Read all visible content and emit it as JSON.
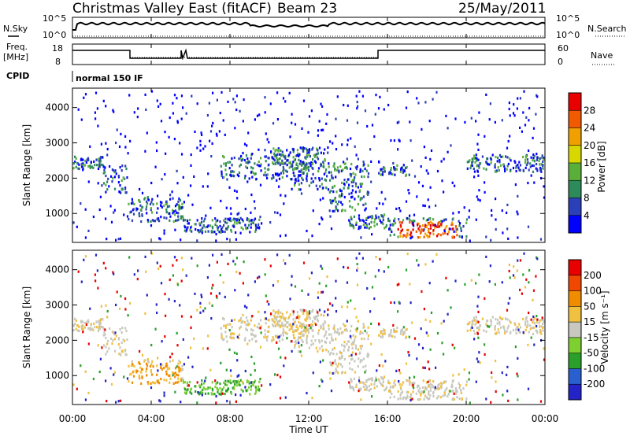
{
  "header": {
    "station": "Christmas Valley East (fitACF)",
    "beam": "Beam 23",
    "date": "25/May/2011"
  },
  "status_panels": {
    "nsky_label": "N.Sky",
    "nsky_ticks": [
      "10^5",
      "10^0"
    ],
    "nsearch_label": "N.Search",
    "nsearch_ticks": [
      "10^5",
      "10^0"
    ],
    "freq_label_1": "Freq.",
    "freq_label_2": "[MHz]",
    "freq_ticks": [
      "18",
      "8"
    ],
    "nave_label": "Nave",
    "nave_ticks": [
      "60",
      "0"
    ],
    "cpid_label": "CPID",
    "cpid_value": "normal 150 IF"
  },
  "chart_data": [
    {
      "type": "heatmap",
      "panel": "power",
      "ylabel": "Slant Range [km]",
      "yticks": [
        "4000",
        "3000",
        "2000",
        "1000"
      ],
      "ylim": [
        180,
        4550
      ],
      "colorbar_label": "Power [dB]",
      "colorbar_ticks": [
        "28",
        "24",
        "20",
        "16",
        "12",
        "8",
        "4"
      ],
      "colors": [
        "#0000ff",
        "#2a3fb8",
        "#2e8a5a",
        "#5aaf3a",
        "#d8d800",
        "#f0a000",
        "#f05a00",
        "#e80000"
      ]
    },
    {
      "type": "heatmap",
      "panel": "velocity",
      "ylabel": "Slant Range [km]",
      "yticks": [
        "4000",
        "3000",
        "2000",
        "1000"
      ],
      "ylim": [
        180,
        4550
      ],
      "colorbar_label": "Velocity [m s⁻¹]",
      "colorbar_ticks": [
        "200",
        "100",
        "50",
        "15",
        "-15",
        "-50",
        "-100",
        "-200"
      ],
      "colors": [
        "#2323c8",
        "#2a5fcf",
        "#2aa02a",
        "#7ed030",
        "#c8c8c0",
        "#f0c040",
        "#f08c00",
        "#f04800",
        "#e80000"
      ]
    }
  ],
  "x_axis": {
    "label": "Time UT",
    "ticks": [
      "00:00",
      "04:00",
      "08:00",
      "12:00",
      "16:00",
      "20:00",
      "00:00"
    ]
  },
  "colors": {
    "ground_scatter": "#c8c8c0",
    "frame": "#000000"
  }
}
